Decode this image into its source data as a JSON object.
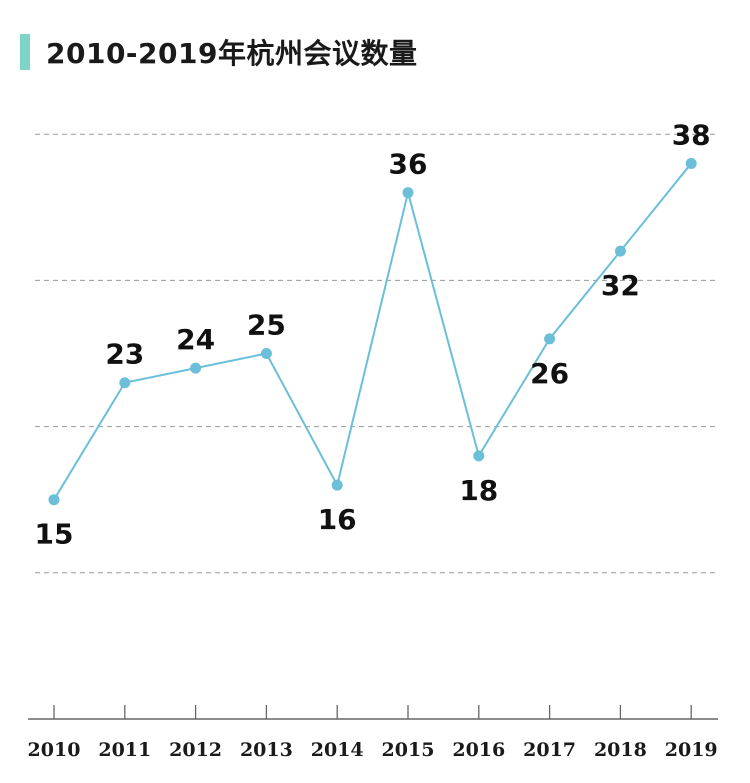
{
  "colors": {
    "accent": "#7fd4c8",
    "line": "#6bbfd8",
    "grid": "#999999",
    "axis": "#666666",
    "text": "#111111"
  },
  "chart_data": {
    "type": "line",
    "title": "2010-2019年杭州会议数量",
    "xlabel": "",
    "ylabel": "",
    "categories": [
      "2010",
      "2011",
      "2012",
      "2013",
      "2014",
      "2015",
      "2016",
      "2017",
      "2018",
      "2019"
    ],
    "series": [
      {
        "values": [
          15,
          23,
          24,
          25,
          16,
          36,
          18,
          26,
          32,
          38
        ]
      }
    ],
    "ylim": [
      0,
      40
    ],
    "grid": true,
    "legend": "none",
    "label_positions": [
      "below",
      "above",
      "above",
      "above",
      "below",
      "above",
      "below",
      "below",
      "below",
      "above"
    ]
  }
}
